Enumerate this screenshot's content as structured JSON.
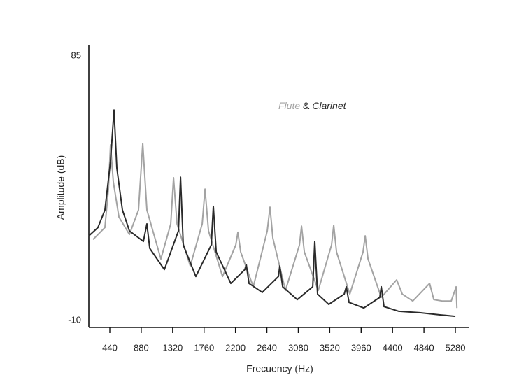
{
  "chart_data": {
    "type": "line",
    "y_label": "Amplitude (dB)",
    "x_label": "Frecuency (Hz)",
    "legend_joiner": "&",
    "xlim": [
      146,
      5466
    ],
    "ylim": [
      -12.5,
      88.8
    ],
    "xticks": [
      440,
      880,
      1320,
      1760,
      2200,
      2640,
      3080,
      3520,
      3960,
      4400,
      4840,
      5280
    ],
    "yticks": [
      -10,
      85
    ],
    "series": [
      {
        "name": "Flute",
        "color": "#a3a3a3",
        "x": [
          205,
          371,
          420,
          450,
          489,
          567,
          714,
          842,
          901,
          959,
          1155,
          1293,
          1332,
          1381,
          1567,
          1734,
          1773,
          1822,
          2018,
          2204,
          2234,
          2273,
          2449,
          2645,
          2684,
          2724,
          2900,
          3096,
          3125,
          3165,
          3360,
          3546,
          3576,
          3615,
          3801,
          3987,
          4017,
          4056,
          4242,
          4458,
          4536,
          4683,
          4919,
          4978,
          5095,
          5222,
          5291,
          5301
        ],
        "values": [
          19.1,
          23.4,
          37.2,
          53.1,
          39.8,
          27.2,
          20.9,
          29.7,
          53.6,
          29.7,
          12.1,
          24.7,
          41.3,
          24.7,
          9.6,
          24.7,
          37.2,
          22.2,
          5.8,
          17.1,
          21.7,
          14.6,
          2.1,
          22.2,
          30.7,
          19.6,
          0.8,
          17.1,
          23.9,
          14.6,
          0.8,
          17.1,
          24.2,
          14.6,
          -0.5,
          14.6,
          20.4,
          12.1,
          -1.7,
          4.6,
          -0.5,
          -3.0,
          3.3,
          -2.5,
          -3.0,
          -3.0,
          2.1,
          -5.5
        ]
      },
      {
        "name": "Clarinet",
        "color": "#2a2a2a",
        "x": [
          146,
          273,
          371,
          450,
          499,
          538,
          616,
          714,
          910,
          959,
          999,
          1204,
          1401,
          1430,
          1469,
          1645,
          1861,
          1890,
          1930,
          2135,
          2331,
          2351,
          2390,
          2576,
          2802,
          2821,
          2861,
          3066,
          3282,
          3311,
          3350,
          3507,
          3723,
          3752,
          3791,
          3997,
          4222,
          4242,
          4281,
          4487,
          4781,
          5075,
          5281
        ],
        "values": [
          20.4,
          23.4,
          29.7,
          47.3,
          65.6,
          44.8,
          29.7,
          22.2,
          18.4,
          24.7,
          15.9,
          8.3,
          22.2,
          41.5,
          17.1,
          5.8,
          17.1,
          31.0,
          14.6,
          3.3,
          8.3,
          10.1,
          3.3,
          0.1,
          5.8,
          9.6,
          2.1,
          -2.5,
          2.1,
          18.4,
          -0.5,
          -4.2,
          -0.5,
          2.1,
          -3.5,
          -5.5,
          -1.7,
          2.1,
          -5.0,
          -6.7,
          -7.2,
          -8.0,
          -8.5
        ]
      }
    ]
  }
}
